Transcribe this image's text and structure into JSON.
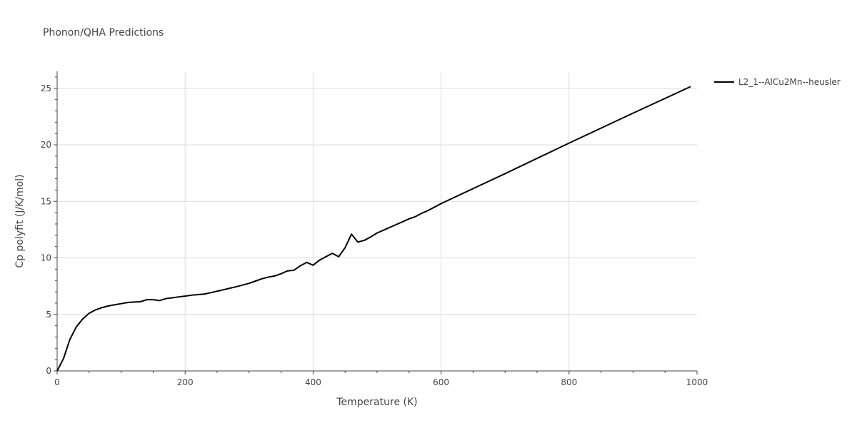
{
  "chart_data": {
    "type": "line",
    "title": "Phonon/QHA Predictions",
    "xlabel": "Temperature (K)",
    "ylabel": "Cp polyfit (J/K/mol)",
    "xlim": [
      0,
      1000
    ],
    "ylim": [
      0,
      26.5
    ],
    "xticks": [
      0,
      200,
      400,
      600,
      800,
      1000
    ],
    "yticks": [
      0,
      5,
      10,
      15,
      20,
      25
    ],
    "grid": true,
    "legend_position": "top-right",
    "series": [
      {
        "name": "L2_1--AlCu2Mn--heusler",
        "color": "#000000",
        "x": [
          0,
          10,
          20,
          30,
          40,
          50,
          60,
          70,
          80,
          90,
          100,
          110,
          120,
          130,
          140,
          150,
          160,
          170,
          180,
          190,
          200,
          210,
          220,
          230,
          240,
          250,
          260,
          270,
          280,
          290,
          300,
          310,
          320,
          330,
          340,
          350,
          360,
          370,
          380,
          390,
          400,
          410,
          420,
          430,
          440,
          450,
          460,
          470,
          480,
          490,
          500,
          510,
          520,
          530,
          540,
          550,
          560,
          570,
          580,
          590,
          600,
          700,
          800,
          900,
          990
        ],
        "y": [
          0,
          1.1,
          2.8,
          3.9,
          4.6,
          5.1,
          5.4,
          5.6,
          5.75,
          5.85,
          5.95,
          6.05,
          6.1,
          6.12,
          6.3,
          6.3,
          6.22,
          6.4,
          6.47,
          6.55,
          6.62,
          6.7,
          6.75,
          6.8,
          6.92,
          7.05,
          7.18,
          7.32,
          7.45,
          7.6,
          7.75,
          7.95,
          8.15,
          8.3,
          8.4,
          8.6,
          8.85,
          8.9,
          9.3,
          9.6,
          9.35,
          9.8,
          10.1,
          10.4,
          10.1,
          10.9,
          12.1,
          11.4,
          11.55,
          11.85,
          12.2,
          12.45,
          12.7,
          12.95,
          13.2,
          13.45,
          13.65,
          13.95,
          14.2,
          14.5,
          14.8,
          17.45,
          20.15,
          22.8,
          25.15
        ]
      }
    ]
  }
}
